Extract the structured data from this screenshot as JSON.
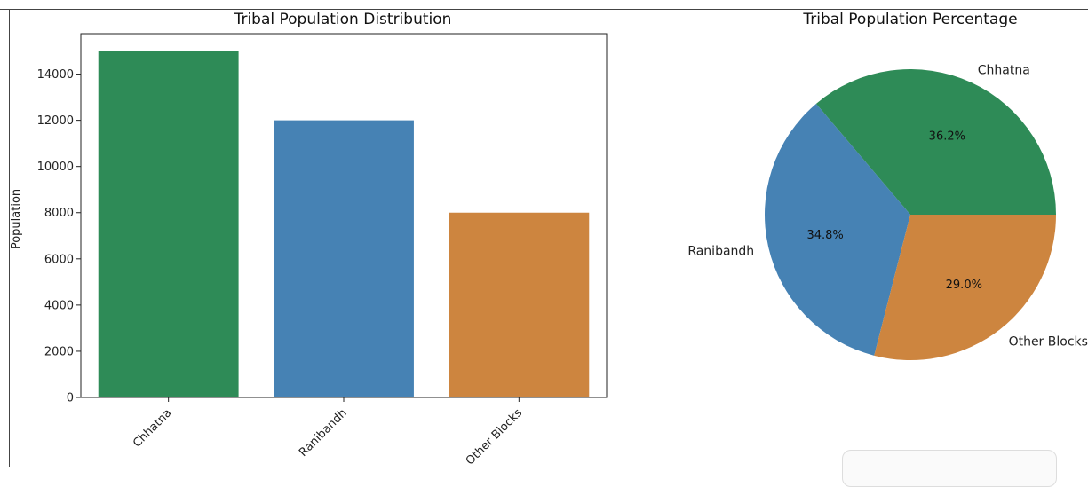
{
  "chart_data": [
    {
      "type": "bar",
      "title": "Tribal Population Distribution",
      "xlabel": "",
      "ylabel": "Population",
      "categories": [
        "Chhatna",
        "Ranibandh",
        "Other Blocks"
      ],
      "values": [
        15000,
        12000,
        8000
      ],
      "colors": [
        "#2e8b57",
        "#4682b4",
        "#cd853f"
      ],
      "ylim": [
        0,
        15750
      ],
      "yticks": [
        0,
        2000,
        4000,
        6000,
        8000,
        10000,
        12000,
        14000
      ],
      "grid": false
    },
    {
      "type": "pie",
      "title": "Tribal Population Percentage",
      "labels": [
        "Chhatna",
        "Ranibandh",
        "Other Blocks"
      ],
      "values": [
        36.2,
        34.8,
        29.0
      ],
      "percent_labels": [
        "36.2%",
        "34.8%",
        "29.0%"
      ],
      "colors": [
        "#2e8b57",
        "#4682b4",
        "#cd853f"
      ]
    }
  ]
}
